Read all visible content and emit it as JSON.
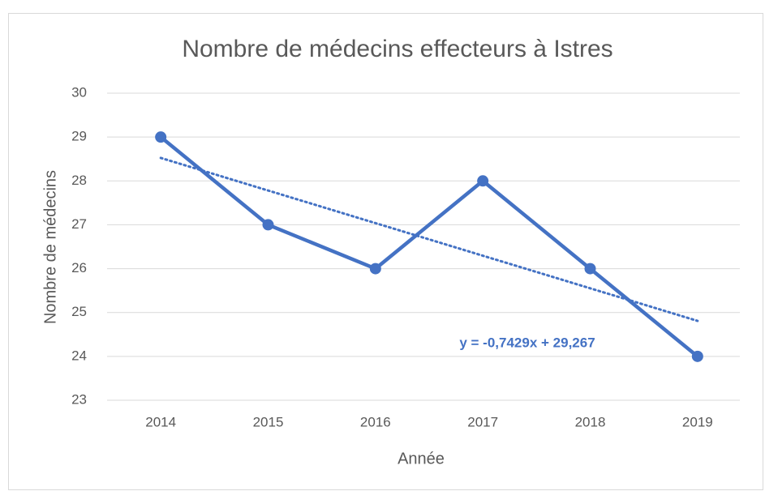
{
  "chart_data": {
    "type": "line",
    "title": "Nombre de médecins effecteurs à Istres",
    "x_label": "Année",
    "y_label": "Nombre de médecins",
    "categories": [
      "2014",
      "2015",
      "2016",
      "2017",
      "2018",
      "2019"
    ],
    "series": [
      {
        "name": "Nombre de médecins",
        "color": "#4472c4",
        "values": [
          29,
          27,
          26,
          28,
          26,
          24
        ]
      }
    ],
    "trendline": {
      "slope": -0.7429,
      "intercept": 29.267,
      "label": "y = -0,7429x + 29,267",
      "style": "dotted"
    },
    "ylim": [
      23,
      30
    ],
    "yticks": [
      23,
      24,
      25,
      26,
      27,
      28,
      29,
      30
    ],
    "grid": true
  }
}
